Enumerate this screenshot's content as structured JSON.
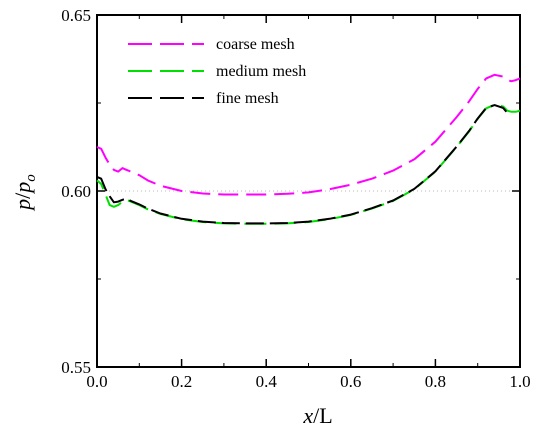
{
  "chart_data": {
    "type": "line",
    "xlabel": {
      "main": "x",
      "rest": "/L"
    },
    "ylabel": {
      "p": "p",
      "slash": "/",
      "p2": "p",
      "sub": "o"
    },
    "xlim": [
      0,
      1.0
    ],
    "ylim": [
      0.55,
      0.65
    ],
    "xticks": [
      "0.0",
      "0.2",
      "0.4",
      "0.6",
      "0.8",
      "1.0"
    ],
    "yticks": [
      "0.55",
      "0.60",
      "0.65"
    ],
    "xtick_values": [
      0,
      0.2,
      0.4,
      0.6,
      0.8,
      1.0
    ],
    "ytick_values": [
      0.55,
      0.6,
      0.65
    ],
    "reference_line": {
      "y": 0.6,
      "style": "dotted",
      "color": "#bbbbbb"
    },
    "grid": false,
    "legend_position": "top-left",
    "series": [
      {
        "name": "coarse mesh",
        "color": "#ff00ff",
        "dash": "long",
        "x": [
          0.0,
          0.01,
          0.02,
          0.03,
          0.04,
          0.05,
          0.06,
          0.07,
          0.08,
          0.1,
          0.12,
          0.15,
          0.2,
          0.25,
          0.3,
          0.35,
          0.4,
          0.45,
          0.5,
          0.55,
          0.6,
          0.65,
          0.7,
          0.75,
          0.8,
          0.85,
          0.88,
          0.9,
          0.92,
          0.94,
          0.96,
          0.97,
          0.98,
          0.99,
          1.0
        ],
        "y": [
          0.6125,
          0.612,
          0.6095,
          0.6075,
          0.606,
          0.6055,
          0.6065,
          0.606,
          0.6055,
          0.6045,
          0.603,
          0.6015,
          0.6,
          0.5993,
          0.599,
          0.599,
          0.599,
          0.5992,
          0.5996,
          0.6005,
          0.6018,
          0.6035,
          0.6058,
          0.609,
          0.614,
          0.621,
          0.6255,
          0.629,
          0.632,
          0.633,
          0.6325,
          0.6315,
          0.6312,
          0.6315,
          0.632
        ]
      },
      {
        "name": "medium mesh",
        "color": "#00e000",
        "dash": "long",
        "x": [
          0.0,
          0.01,
          0.02,
          0.03,
          0.04,
          0.05,
          0.06,
          0.07,
          0.08,
          0.1,
          0.12,
          0.15,
          0.2,
          0.25,
          0.3,
          0.35,
          0.4,
          0.45,
          0.5,
          0.55,
          0.6,
          0.65,
          0.7,
          0.75,
          0.8,
          0.85,
          0.88,
          0.9,
          0.92,
          0.94,
          0.96,
          0.97,
          0.98,
          0.99,
          1.0
        ],
        "y": [
          0.603,
          0.602,
          0.599,
          0.596,
          0.5955,
          0.596,
          0.597,
          0.5975,
          0.597,
          0.596,
          0.5948,
          0.5935,
          0.592,
          0.5912,
          0.5908,
          0.5907,
          0.5907,
          0.5908,
          0.5912,
          0.592,
          0.5932,
          0.595,
          0.5972,
          0.6005,
          0.6055,
          0.6125,
          0.617,
          0.6205,
          0.6235,
          0.6245,
          0.624,
          0.6228,
          0.6225,
          0.6225,
          0.6228
        ]
      },
      {
        "name": "fine mesh",
        "color": "#000000",
        "dash": "long",
        "x": [
          0.0,
          0.01,
          0.02,
          0.03,
          0.04,
          0.05,
          0.06,
          0.07,
          0.08,
          0.1,
          0.12,
          0.15,
          0.2,
          0.25,
          0.3,
          0.35,
          0.4,
          0.45,
          0.5,
          0.55,
          0.6,
          0.65,
          0.7,
          0.75,
          0.8,
          0.85,
          0.88,
          0.9,
          0.92,
          0.94,
          0.96,
          0.97
        ],
        "y": [
          0.604,
          0.6035,
          0.6005,
          0.5985,
          0.5968,
          0.597,
          0.5975,
          0.5978,
          0.5972,
          0.5962,
          0.595,
          0.5936,
          0.5921,
          0.5913,
          0.5909,
          0.5908,
          0.5908,
          0.5909,
          0.5913,
          0.5921,
          0.5933,
          0.5951,
          0.5973,
          0.6006,
          0.6056,
          0.6126,
          0.6171,
          0.6206,
          0.6236,
          0.6244,
          0.6236,
          0.6222
        ]
      }
    ]
  }
}
